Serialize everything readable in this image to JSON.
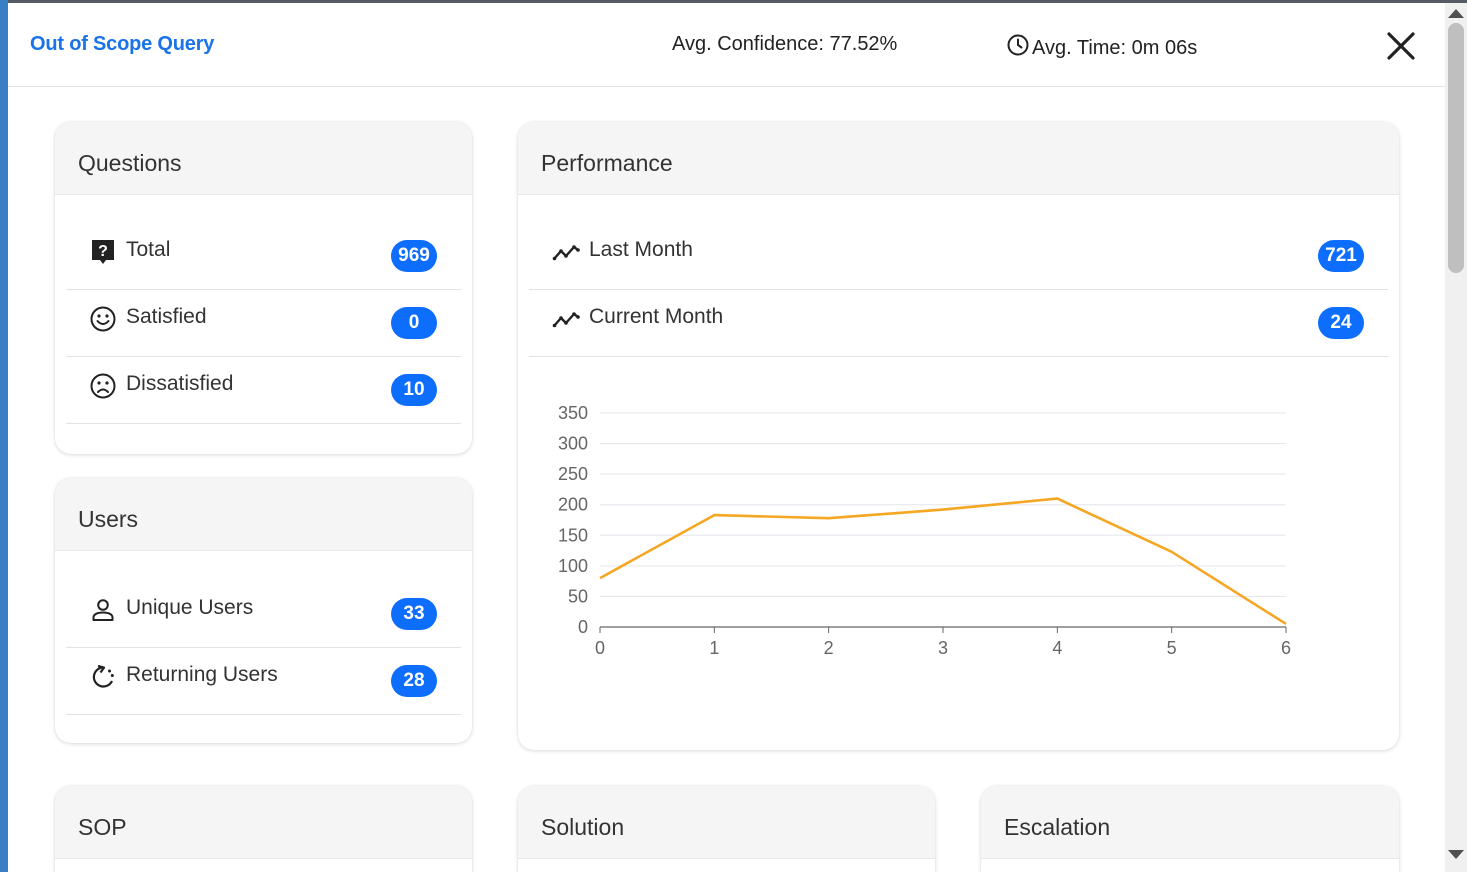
{
  "header": {
    "title": "Out of Scope Query",
    "avg_confidence": "Avg. Confidence: 77.52%",
    "avg_time": "Avg. Time: 0m 06s"
  },
  "questions": {
    "title": "Questions",
    "items": [
      {
        "label": "Total",
        "count": "969",
        "icon": "question-box-icon"
      },
      {
        "label": "Satisfied",
        "count": "0",
        "icon": "smile-face-icon"
      },
      {
        "label": "Dissatisfied",
        "count": "10",
        "icon": "sad-face-icon"
      }
    ]
  },
  "users": {
    "title": "Users",
    "items": [
      {
        "label": "Unique Users",
        "count": "33",
        "icon": "person-icon"
      },
      {
        "label": "Returning Users",
        "count": "28",
        "icon": "returning-arrows-icon"
      }
    ]
  },
  "performance": {
    "title": "Performance",
    "items": [
      {
        "label": "Last Month",
        "count": "721",
        "icon": "trend-line-icon"
      },
      {
        "label": "Current Month",
        "count": "24",
        "icon": "trend-line-icon"
      }
    ]
  },
  "bottom_cards": {
    "sop": "SOP",
    "solution": "Solution",
    "escalation": "Escalation"
  },
  "colors": {
    "accent": "#1a73e8",
    "badge": "#0d6efd",
    "line": "#f5a623"
  },
  "chart_data": {
    "type": "line",
    "x": [
      0,
      1,
      2,
      3,
      4,
      5,
      6
    ],
    "values": [
      80,
      183,
      178,
      192,
      210,
      123,
      5
    ],
    "ylim": [
      0,
      350
    ],
    "yticks": [
      0,
      50,
      100,
      150,
      200,
      250,
      300,
      350
    ],
    "xticks": [
      0,
      1,
      2,
      3,
      4,
      5,
      6
    ],
    "grid": true,
    "color": "#f5a623"
  }
}
